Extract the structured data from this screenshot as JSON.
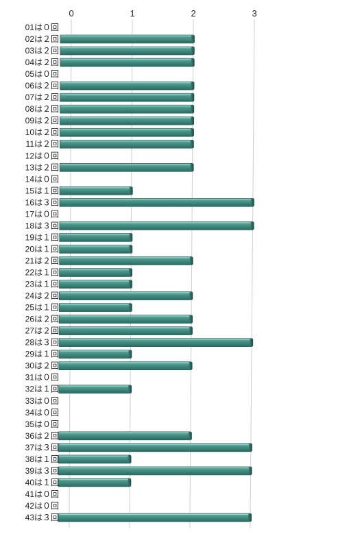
{
  "chart_data": {
    "type": "bar",
    "orientation": "horizontal",
    "style": "3d-perspective",
    "bar_color": "#3f8a80",
    "bar_top_color": "#6fb5aa",
    "bar_dark_color": "#1f4e48",
    "xlim": [
      0,
      3
    ],
    "xticks": [
      "0",
      "1",
      "2",
      "3"
    ],
    "grid": true,
    "legend": "none",
    "categories": [
      "01は０回",
      "02は２回",
      "03は２回",
      "04は２回",
      "05は０回",
      "06は２回",
      "07は２回",
      "08は２回",
      "09は２回",
      "10は２回",
      "11は２回",
      "12は０回",
      "13は２回",
      "14は０回",
      "15は１回",
      "16は３回",
      "17は０回",
      "18は３回",
      "19は１回",
      "20は１回",
      "21は２回",
      "22は１回",
      "23は１回",
      "24は２回",
      "25は１回",
      "26は２回",
      "27は２回",
      "28は３回",
      "29は１回",
      "30は２回",
      "31は０回",
      "32は１回",
      "33は０回",
      "34は０回",
      "35は０回",
      "36は２回",
      "37は３回",
      "38は１回",
      "39は３回",
      "40は１回",
      "41は０回",
      "42は０回",
      "43は３回"
    ],
    "values": [
      0,
      2,
      2,
      2,
      0,
      2,
      2,
      2,
      2,
      2,
      2,
      0,
      2,
      0,
      1,
      3,
      0,
      3,
      1,
      1,
      2,
      1,
      1,
      2,
      1,
      2,
      2,
      3,
      1,
      2,
      0,
      1,
      0,
      0,
      0,
      2,
      3,
      1,
      3,
      1,
      0,
      0,
      3
    ]
  }
}
